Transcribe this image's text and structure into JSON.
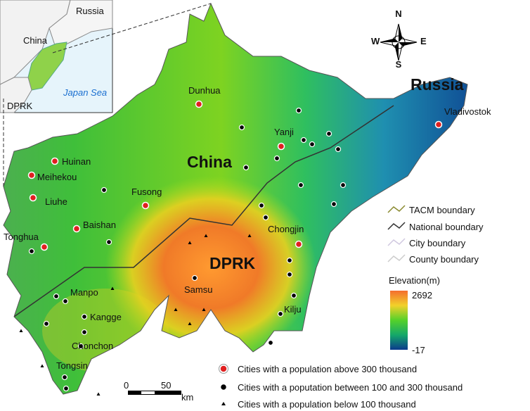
{
  "inset": {
    "russia": "Russia",
    "china": "China",
    "dprk": "DPRK",
    "sea": "Japan Sea"
  },
  "map": {
    "countries": [
      "China",
      "DPRK",
      "Russia"
    ],
    "large_cities": [
      "Dunhua",
      "Huinan",
      "Meihekou",
      "Liuhe",
      "Fusong",
      "Baishan",
      "Tonghua",
      "Yanji",
      "Vladivostok",
      "Chongjin"
    ],
    "medium_cities": [
      "Samsu",
      "Manpo",
      "Kangge",
      "Chonchon",
      "Tongsin",
      "Kilju"
    ]
  },
  "compass": {
    "n": "N",
    "e": "E",
    "s": "S",
    "w": "W"
  },
  "legend": {
    "boundaries": [
      "TACM boundary",
      "National boundary",
      "City boundary",
      "County boundary"
    ],
    "elevation": {
      "title": "Elevation(m)",
      "max": 2692,
      "min": -17
    },
    "cities": [
      "Cities with a population above 300 thousand",
      "Cities with a poputation between 100 and 300 thousand",
      "Cities with a population below 100 thousand"
    ]
  },
  "scale": {
    "start": 0,
    "end": 50,
    "unit": "km"
  }
}
